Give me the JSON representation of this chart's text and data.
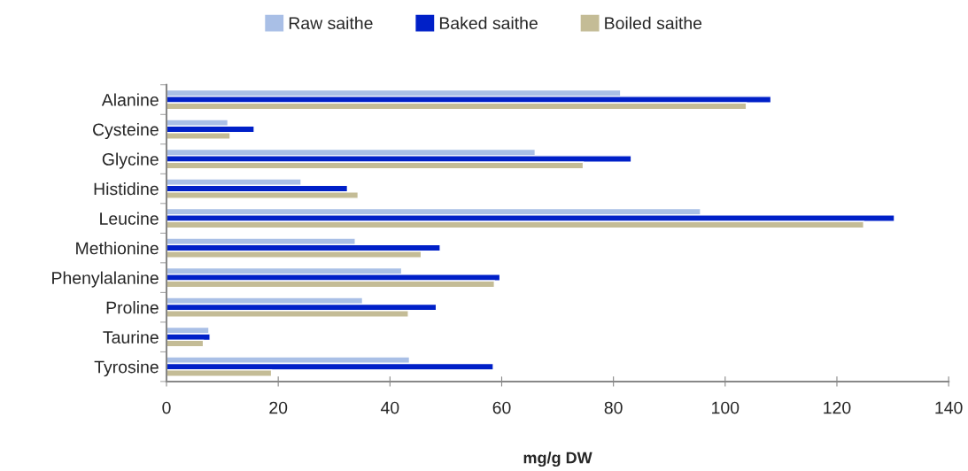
{
  "chart_data": {
    "type": "bar",
    "orientation": "horizontal",
    "xlabel": "mg/g DW",
    "categories": [
      "Alanine",
      "Cysteine",
      "Glycine",
      "Histidine",
      "Leucine",
      "Methionine",
      "Phenylalanine",
      "Proline",
      "Taurine",
      "Tyrosine"
    ],
    "series": [
      {
        "name": "Raw saithe",
        "color": "#a9bfe6",
        "values": [
          81.3,
          11.0,
          66.0,
          24.1,
          95.6,
          33.8,
          42.1,
          35.1,
          7.6,
          43.5
        ]
      },
      {
        "name": "Baked saithe",
        "color": "#0020c8",
        "values": [
          108.2,
          15.7,
          83.2,
          32.4,
          130.3,
          49.0,
          59.7,
          48.3,
          7.8,
          58.5
        ]
      },
      {
        "name": "Boiled saithe",
        "color": "#c4bc96",
        "values": [
          103.8,
          11.4,
          74.6,
          34.3,
          124.8,
          45.6,
          58.7,
          43.3,
          6.6,
          18.8
        ]
      }
    ],
    "xlim": [
      0,
      140
    ],
    "xticks": [
      0,
      20,
      40,
      60,
      80,
      100,
      120,
      140
    ],
    "grid": false,
    "legend": "top"
  }
}
